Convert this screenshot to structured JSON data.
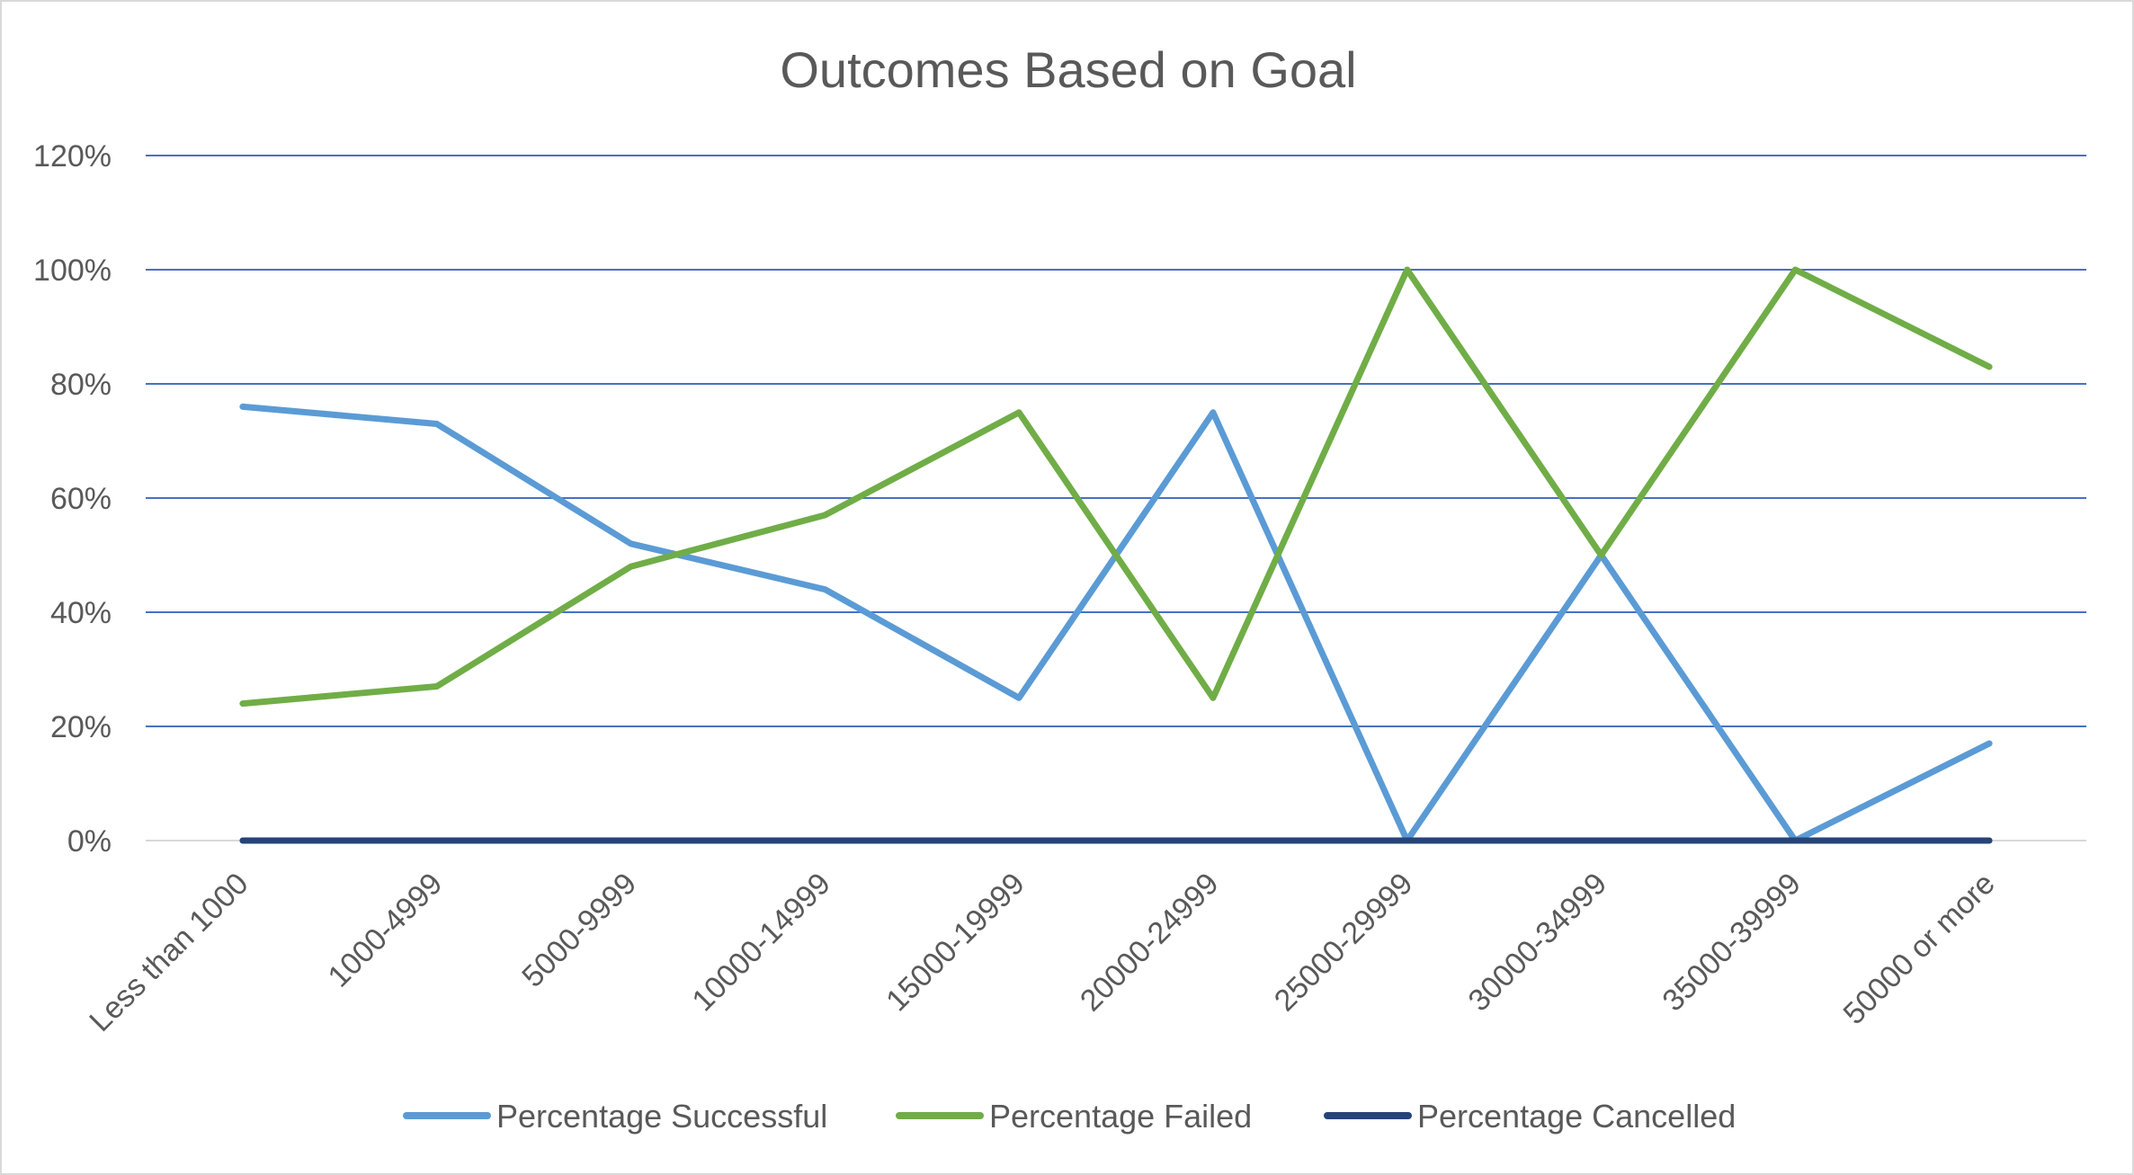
{
  "chart_data": {
    "type": "line",
    "title": "Outcomes Based on Goal",
    "xlabel": "",
    "ylabel": "",
    "categories": [
      "Less than 1000",
      "1000-4999",
      "5000-9999",
      "10000-14999",
      "15000-19999",
      "20000-24999",
      "25000-29999",
      "30000-34999",
      "35000-39999",
      "50000 or more"
    ],
    "y_ticks": [
      "0%",
      "20%",
      "40%",
      "60%",
      "80%",
      "100%",
      "120%"
    ],
    "ylim": [
      0,
      120
    ],
    "y_unit": "%",
    "grid": true,
    "legend_position": "bottom",
    "series": [
      {
        "name": "Percentage Successful",
        "color": "#5b9bd5",
        "values": [
          76,
          73,
          52,
          44,
          25,
          75,
          0,
          50,
          0,
          17
        ]
      },
      {
        "name": "Percentage Failed",
        "color": "#70ad47",
        "values": [
          24,
          27,
          48,
          57,
          75,
          25,
          100,
          50,
          100,
          83
        ]
      },
      {
        "name": "Percentage Cancelled",
        "color": "#264478",
        "values": [
          0,
          0,
          0,
          0,
          0,
          0,
          0,
          0,
          0,
          0
        ]
      }
    ],
    "colors": {
      "gridline": "#4472c4",
      "axis": "#d9d9d9",
      "text": "#595959"
    }
  }
}
